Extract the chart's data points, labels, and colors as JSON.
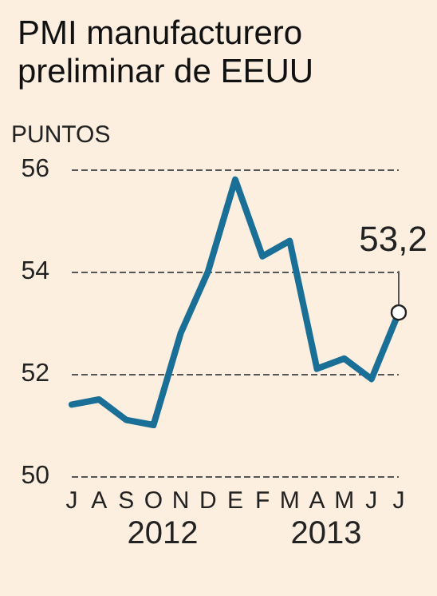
{
  "chart_data": {
    "type": "line",
    "title": "PMI manufacturero preliminar de EEUU",
    "ylabel": "PUNTOS",
    "categories": [
      "J",
      "A",
      "S",
      "O",
      "N",
      "D",
      "E",
      "F",
      "M",
      "A",
      "M",
      "J",
      "J"
    ],
    "series": [
      {
        "color": "#1a6f96",
        "values": [
          51.4,
          51.5,
          51.1,
          51.0,
          52.8,
          54.0,
          55.8,
          54.3,
          54.6,
          52.1,
          52.3,
          51.9,
          53.2
        ],
        "value_labels": [
          null,
          null,
          null,
          null,
          null,
          null,
          null,
          null,
          null,
          null,
          null,
          null,
          "53,2"
        ]
      }
    ],
    "ylim": [
      50,
      56
    ],
    "yticks": [
      50,
      52,
      54,
      56
    ],
    "grid": "y",
    "marker": "none",
    "line_style": "solid",
    "annotations": [
      "2012",
      "2013"
    ]
  }
}
